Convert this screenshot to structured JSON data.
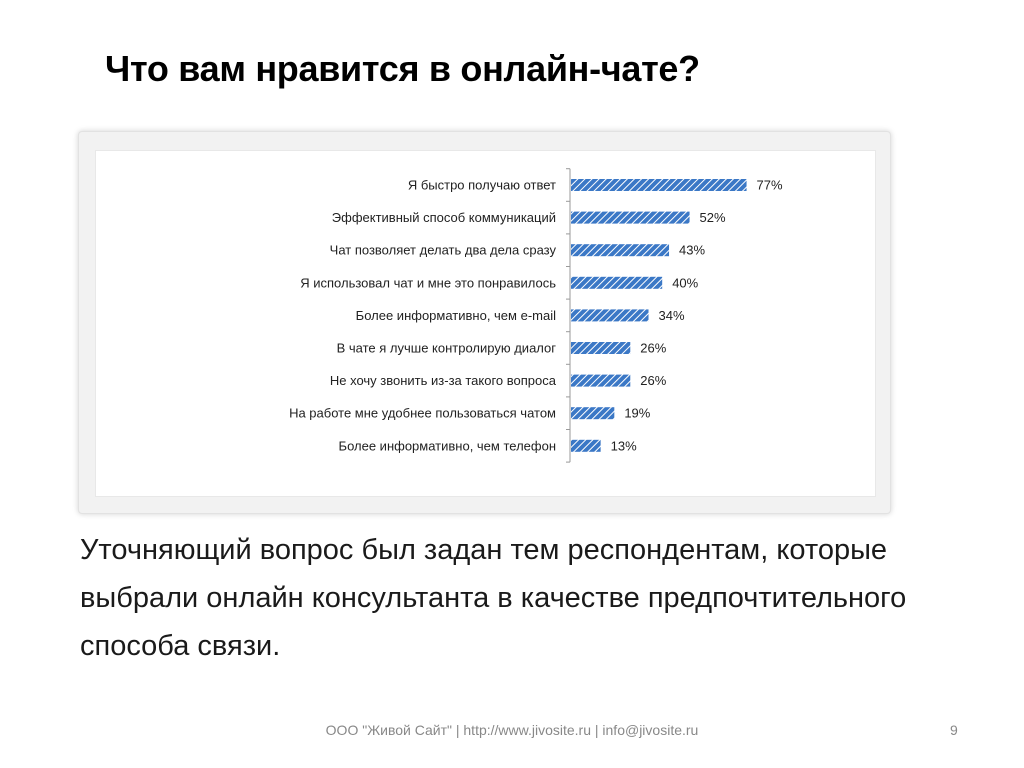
{
  "slide": {
    "title": "Что вам нравится в онлайн-чате?",
    "caption": "Уточняющий вопрос был задан тем респондентам, которые выбрали онлайн консультанта в качестве предпочтительного способа связи.",
    "footer": "ООО \"Живой Сайт\" | http://www.jivosite.ru | info@jivosite.ru",
    "page_number": "9"
  },
  "colors": {
    "bar_fill": "#3b78c6",
    "bar_stripe": "#ffffff",
    "axis": "#9a9a9a",
    "label_text": "#222222"
  },
  "chart_data": {
    "type": "bar",
    "orientation": "horizontal",
    "categories": [
      "Я быстро получаю ответ",
      "Эффективный способ коммуникаций",
      "Чат позволяет делать два дела сразу",
      "Я использовал  чат и мне это понравилось",
      "Более информативно,  чем e-mail",
      "В чате я лучше контролирую  диалог",
      "Не хочу звонить из-за такого вопроса",
      "На работе мне удобнее пользоваться  чатом",
      "Более информативно,  чем телефон"
    ],
    "values": [
      77,
      52,
      43,
      40,
      34,
      26,
      26,
      19,
      13
    ],
    "value_labels": [
      "77%",
      "52%",
      "43%",
      "40%",
      "34%",
      "26%",
      "26%",
      "19%",
      "13%"
    ],
    "unit": "%",
    "xlim": [
      0,
      100
    ],
    "grid": false,
    "legend": "none",
    "bar_pattern": "diagonal-hatch"
  }
}
